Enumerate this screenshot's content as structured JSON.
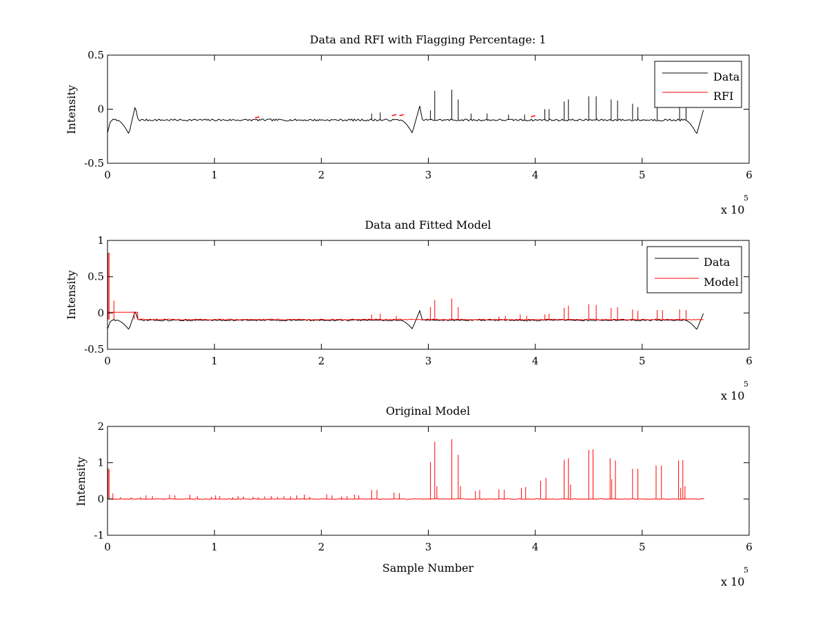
{
  "figure": {
    "background": "#ffffff",
    "colors": {
      "data": "#000000",
      "model": "#ff0000",
      "axes": "#000000"
    }
  },
  "chart_data": [
    {
      "type": "line",
      "title": "Data and RFI with Flagging Percentage: 1",
      "xlabel": "",
      "ylabel": "Intensity",
      "xlim": [
        0,
        600000
      ],
      "ylim": [
        -0.5,
        0.5
      ],
      "xticks": [
        0,
        1,
        2,
        3,
        4,
        5,
        6
      ],
      "xtick_labels": [
        "0",
        "1",
        "2",
        "3",
        "4",
        "5",
        "6"
      ],
      "yticks": [
        -0.5,
        0,
        0.5
      ],
      "ytick_labels": [
        "-0.5",
        "0",
        "0.5"
      ],
      "x_exponent": {
        "base": "x 10",
        "power": "5"
      },
      "legend": {
        "position": "top-right",
        "entries": [
          "Data",
          "RFI"
        ]
      },
      "grid": false,
      "series": [
        {
          "name": "Data",
          "color": "#000000",
          "baseline": -0.1,
          "x_end": 558000,
          "dips": [
            {
              "x": 20000,
              "y": -0.23,
              "peak_x": 26000,
              "peak_y": 0.03
            },
            {
              "x": 285000,
              "y": -0.22,
              "peak_x": 292000,
              "peak_y": 0.03
            },
            {
              "x": 551000,
              "y": -0.23,
              "peak_x": 558000,
              "peak_y": 0.02
            }
          ],
          "spikes": [
            [
              247000,
              -0.04
            ],
            [
              255000,
              -0.03
            ],
            [
              302000,
              -0.01
            ],
            [
              306000,
              0.17
            ],
            [
              322000,
              0.18
            ],
            [
              328000,
              0.09
            ],
            [
              340000,
              -0.04
            ],
            [
              355000,
              -0.04
            ],
            [
              375000,
              -0.05
            ],
            [
              390000,
              -0.05
            ],
            [
              409000,
              0.0
            ],
            [
              413000,
              0.0
            ],
            [
              427000,
              0.07
            ],
            [
              431000,
              0.09
            ],
            [
              450000,
              0.12
            ],
            [
              457000,
              0.12
            ],
            [
              471000,
              0.09
            ],
            [
              477000,
              0.08
            ],
            [
              491000,
              0.05
            ],
            [
              496000,
              0.02
            ],
            [
              514000,
              0.02
            ],
            [
              535000,
              0.05
            ],
            [
              541000,
              0.04
            ]
          ]
        },
        {
          "name": "RFI",
          "color": "#ff0000",
          "points": [
            [
              140000,
              -0.08
            ],
            [
              268000,
              -0.06
            ],
            [
              275000,
              -0.06
            ],
            [
              398000,
              -0.07
            ]
          ]
        }
      ]
    },
    {
      "type": "line",
      "title": "Data and Fitted Model",
      "xlabel": "",
      "ylabel": "Intensity",
      "xlim": [
        0,
        600000
      ],
      "ylim": [
        -0.5,
        1
      ],
      "xticks": [
        0,
        1,
        2,
        3,
        4,
        5,
        6
      ],
      "xtick_labels": [
        "0",
        "1",
        "2",
        "3",
        "4",
        "5",
        "6"
      ],
      "yticks": [
        -0.5,
        0,
        0.5,
        1
      ],
      "ytick_labels": [
        "-0.5",
        "0",
        "0.5",
        "1"
      ],
      "x_exponent": {
        "base": "x 10",
        "power": "5"
      },
      "legend": {
        "position": "top-right",
        "entries": [
          "Data",
          "Model"
        ]
      },
      "grid": false,
      "series": [
        {
          "name": "Data",
          "color": "#000000",
          "baseline": -0.1,
          "x_end": 558000,
          "dips": [
            {
              "x": 20000,
              "y": -0.23,
              "peak_x": 26000,
              "peak_y": 0.03
            },
            {
              "x": 285000,
              "y": -0.22,
              "peak_x": 292000,
              "peak_y": 0.03
            },
            {
              "x": 551000,
              "y": -0.23,
              "peak_x": 558000,
              "peak_y": 0.02
            }
          ],
          "spikes": []
        },
        {
          "name": "Model",
          "color": "#ff0000",
          "baseline": -0.09,
          "x_start": 0,
          "x_end": 558000,
          "initial_step": {
            "x_end": 28000,
            "y": 0.01
          },
          "spikes": [
            [
              500,
              0.83
            ],
            [
              1500,
              0.83
            ],
            [
              6000,
              0.17
            ],
            [
              25000,
              0.01
            ],
            [
              247000,
              -0.02
            ],
            [
              255000,
              -0.01
            ],
            [
              270000,
              -0.04
            ],
            [
              302000,
              0.08
            ],
            [
              306000,
              0.18
            ],
            [
              322000,
              0.2
            ],
            [
              328000,
              0.08
            ],
            [
              366000,
              -0.05
            ],
            [
              372000,
              -0.04
            ],
            [
              386000,
              -0.02
            ],
            [
              392000,
              -0.04
            ],
            [
              409000,
              -0.02
            ],
            [
              413000,
              -0.01
            ],
            [
              427000,
              0.07
            ],
            [
              431000,
              0.1
            ],
            [
              450000,
              0.12
            ],
            [
              457000,
              0.11
            ],
            [
              471000,
              0.07
            ],
            [
              477000,
              0.08
            ],
            [
              491000,
              0.05
            ],
            [
              496000,
              0.03
            ],
            [
              514000,
              0.04
            ],
            [
              519000,
              0.04
            ],
            [
              535000,
              0.05
            ],
            [
              541000,
              0.04
            ]
          ]
        }
      ]
    },
    {
      "type": "line",
      "title": "Original Model",
      "xlabel": "Sample Number",
      "ylabel": "Intensity",
      "xlim": [
        0,
        600000
      ],
      "ylim": [
        -1,
        2
      ],
      "xticks": [
        0,
        1,
        2,
        3,
        4,
        5,
        6
      ],
      "xtick_labels": [
        "0",
        "1",
        "2",
        "3",
        "4",
        "5",
        "6"
      ],
      "yticks": [
        -1,
        0,
        1,
        2
      ],
      "ytick_labels": [
        "-1",
        "0",
        "1",
        "2"
      ],
      "x_exponent": {
        "base": "x 10",
        "power": "5"
      },
      "grid": false,
      "series": [
        {
          "name": "Original Model",
          "color": "#ff0000",
          "baseline": 0.0,
          "x_start": 0,
          "x_end": 558000,
          "spikes": [
            [
              500,
              0.85
            ],
            [
              1500,
              0.82
            ],
            [
              5000,
              0.15
            ],
            [
              12000,
              0.05
            ],
            [
              22000,
              0.04
            ],
            [
              31000,
              0.05
            ],
            [
              36000,
              0.1
            ],
            [
              42000,
              0.08
            ],
            [
              58000,
              0.12
            ],
            [
              63000,
              0.1
            ],
            [
              77000,
              0.12
            ],
            [
              84000,
              0.08
            ],
            [
              97000,
              0.06
            ],
            [
              101000,
              0.1
            ],
            [
              105000,
              0.08
            ],
            [
              117000,
              0.05
            ],
            [
              122000,
              0.08
            ],
            [
              127000,
              0.07
            ],
            [
              136000,
              0.06
            ],
            [
              141000,
              0.05
            ],
            [
              147000,
              0.07
            ],
            [
              153000,
              0.08
            ],
            [
              159000,
              0.06
            ],
            [
              165000,
              0.08
            ],
            [
              171000,
              0.07
            ],
            [
              177000,
              0.1
            ],
            [
              184000,
              0.12
            ],
            [
              189000,
              0.06
            ],
            [
              205000,
              0.13
            ],
            [
              210000,
              0.1
            ],
            [
              219000,
              0.07
            ],
            [
              224000,
              0.08
            ],
            [
              231000,
              0.12
            ],
            [
              235000,
              0.1
            ],
            [
              247000,
              0.25
            ],
            [
              252000,
              0.25
            ],
            [
              268000,
              0.18
            ],
            [
              273000,
              0.16
            ],
            [
              302000,
              1.02
            ],
            [
              306000,
              1.58
            ],
            [
              308000,
              0.35
            ],
            [
              322000,
              1.65
            ],
            [
              328000,
              1.22
            ],
            [
              330000,
              0.35
            ],
            [
              344000,
              0.22
            ],
            [
              348000,
              0.25
            ],
            [
              366000,
              0.27
            ],
            [
              371000,
              0.25
            ],
            [
              387000,
              0.3
            ],
            [
              391000,
              0.33
            ],
            [
              405000,
              0.5
            ],
            [
              410000,
              0.58
            ],
            [
              427000,
              1.08
            ],
            [
              431000,
              1.12
            ],
            [
              433000,
              0.4
            ],
            [
              450000,
              1.35
            ],
            [
              454000,
              1.37
            ],
            [
              470000,
              1.12
            ],
            [
              471500,
              0.55
            ],
            [
              475000,
              1.06
            ],
            [
              491000,
              0.83
            ],
            [
              496000,
              0.83
            ],
            [
              513000,
              0.93
            ],
            [
              518000,
              0.92
            ],
            [
              534000,
              1.06
            ],
            [
              536000,
              0.3
            ],
            [
              538000,
              1.07
            ],
            [
              540000,
              0.35
            ]
          ]
        }
      ]
    }
  ]
}
